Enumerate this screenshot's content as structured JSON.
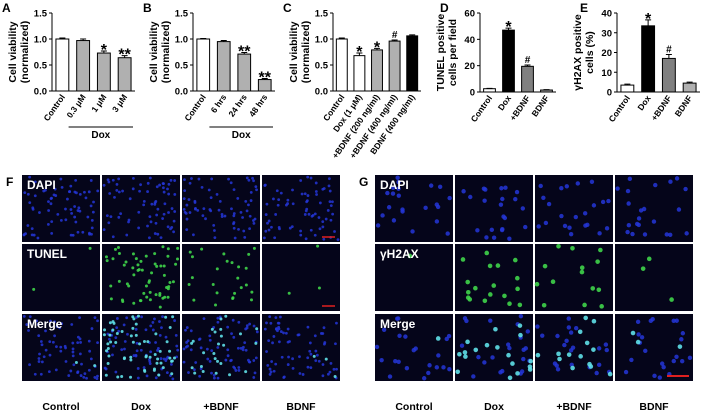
{
  "chart_data": [
    {
      "type": "bar",
      "panel_label": "A",
      "ylabel": [
        "Cell viability",
        "(normalized)"
      ],
      "categories": [
        "Control",
        "0.3 μM",
        "1 μM",
        "3 μM"
      ],
      "group_label": "Dox",
      "values": [
        1.0,
        0.97,
        0.73,
        0.64
      ],
      "errors": [
        0.02,
        0.03,
        0.04,
        0.04
      ],
      "colors": [
        "#ffffff",
        "#b0b0b0",
        "#b0b0b0",
        "#b0b0b0"
      ],
      "annotations": [
        null,
        null,
        "*",
        "**"
      ],
      "ylim": [
        0,
        1.5
      ],
      "yticks": [
        {
          "value": 0,
          "label": "0.0"
        },
        0.5,
        {
          "value": 1,
          "label": "1.0"
        },
        1.5
      ]
    },
    {
      "type": "bar",
      "panel_label": "B",
      "ylabel": [
        "Cell viability",
        "(normalized)"
      ],
      "categories": [
        "Control",
        "6 hrs",
        "24 hrs",
        "48 hrs"
      ],
      "group_label": "Dox",
      "values": [
        1.0,
        0.95,
        0.71,
        0.22
      ],
      "errors": [
        0.01,
        0.02,
        0.03,
        0.02
      ],
      "colors": [
        "#ffffff",
        "#b0b0b0",
        "#b0b0b0",
        "#b0b0b0"
      ],
      "annotations": [
        null,
        null,
        "**",
        "**"
      ],
      "ylim": [
        0,
        1.5
      ],
      "yticks": [
        {
          "value": 0,
          "label": "0.0"
        },
        0.5,
        {
          "value": 1,
          "label": "1.0"
        },
        1.5
      ]
    },
    {
      "type": "bar",
      "panel_label": "C",
      "ylabel": [
        "Cell viability",
        "(normalized)"
      ],
      "categories": [
        "Control",
        "Dox (1 μM)",
        "+BDNF (200 ng/ml)",
        "+BDNF (400 ng/ml)",
        "BDNF (400 ng/ml)"
      ],
      "values": [
        1.0,
        0.68,
        0.79,
        0.96,
        1.06
      ],
      "errors": [
        0.02,
        0.05,
        0.03,
        0.02,
        0.02
      ],
      "colors": [
        "#ffffff",
        "#ffffff",
        "#b0b0b0",
        "#b0b0b0",
        "#000000"
      ],
      "annotations": [
        null,
        "*",
        "*",
        "#",
        null
      ],
      "ylim": [
        0,
        1.5
      ],
      "yticks": [
        {
          "value": 0,
          "label": "0.0"
        },
        0.5,
        {
          "value": 1,
          "label": "1.0"
        },
        1.5
      ]
    },
    {
      "type": "bar",
      "panel_label": "D",
      "ylabel": [
        "TUNEL positive",
        "cells per field"
      ],
      "categories": [
        "Control",
        "Dox",
        "+BDNF",
        "BDNF"
      ],
      "values": [
        2.5,
        47,
        19.5,
        1.5
      ],
      "errors": [
        0.3,
        1.5,
        1.0,
        0.3
      ],
      "colors": [
        "#ffffff",
        "#000000",
        "#808080",
        "#b0b0b0"
      ],
      "annotations": [
        null,
        "*",
        "#",
        null
      ],
      "ylim": [
        0,
        60
      ],
      "yticks": [
        0,
        20,
        40,
        60
      ]
    },
    {
      "type": "bar",
      "panel_label": "E",
      "ylabel": [
        "γH2AX positive",
        "cells (%)"
      ],
      "categories": [
        "Control",
        "Dox",
        "+BDNF",
        "BDNF"
      ],
      "values": [
        3.5,
        33.5,
        17,
        4.5
      ],
      "errors": [
        0.5,
        3,
        2,
        0.5
      ],
      "colors": [
        "#ffffff",
        "#000000",
        "#808080",
        "#b0b0b0"
      ],
      "annotations": [
        null,
        "*",
        "#",
        null
      ],
      "ylim": [
        0,
        40
      ],
      "yticks": [
        0,
        10,
        20,
        30,
        40
      ]
    }
  ],
  "panels": [
    {
      "label": "F",
      "rows": [
        "DAPI",
        "TUNEL",
        "Merge"
      ],
      "columns": [
        "Control",
        "Dox",
        "+BDNF",
        "BDNF"
      ]
    },
    {
      "label": "G",
      "rows": [
        "DAPI",
        "γH2AX",
        "Merge"
      ],
      "columns": [
        "Control",
        "Dox",
        "+BDNF",
        "BDNF"
      ]
    }
  ]
}
